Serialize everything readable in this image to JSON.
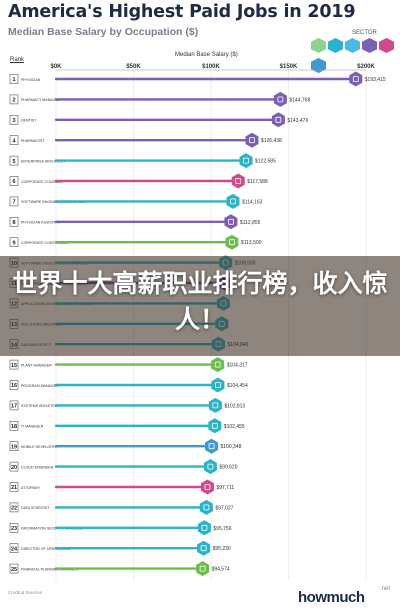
{
  "title": "America's Highest Paid Jobs in 2019",
  "subtitle": "Median Base Salary by Occupation ($)",
  "legend_title": "SECTOR",
  "sector_colors": [
    "#8fd18f",
    "#2bb3c8",
    "#4bb8e8",
    "#7a5fb5",
    "#d14a8b",
    "#3f9ad4"
  ],
  "banner_text": "世界十大高薪职业排行榜，收入惊人！",
  "footer_note": "Credit & Sources",
  "brand": {
    "name": "howmuch",
    "suffix": ".net"
  },
  "chart_data": {
    "type": "bar",
    "title": "America's Highest Paid Jobs in 2019",
    "subtitle": "Median Base Salary by Occupation ($)",
    "xlabel": "Median Base Salary ($)",
    "ylabel": "Rank",
    "xlim": [
      0,
      200000
    ],
    "x_ticks": [
      "$0K",
      "$50K",
      "$100K",
      "$150K",
      "$200K"
    ],
    "bars": [
      {
        "rank": 1,
        "label": "Physician",
        "value": 193415,
        "value_label": "$193,415",
        "color": "#7a5fb5"
      },
      {
        "rank": 2,
        "label": "Pharmacy Manager",
        "value": 144768,
        "value_label": "$144,768",
        "color": "#7a5fb5"
      },
      {
        "rank": 3,
        "label": "Dentist",
        "value": 143476,
        "value_label": "$143,476",
        "color": "#7a5fb5"
      },
      {
        "rank": 4,
        "label": "Pharmacist",
        "value": 126438,
        "value_label": "$126,438",
        "color": "#7a5fb5"
      },
      {
        "rank": 5,
        "label": "Enterprise Architect",
        "value": 122585,
        "value_label": "$122,585",
        "color": "#2bb3c8"
      },
      {
        "rank": 6,
        "label": "Corporate Counsel",
        "value": 117588,
        "value_label": "$117,588",
        "color": "#d14a8b"
      },
      {
        "rank": 7,
        "label": "Software Engineering Manager",
        "value": 114163,
        "value_label": "$114,163",
        "color": "#2bb3c8"
      },
      {
        "rank": 8,
        "label": "Physician Assistant",
        "value": 112855,
        "value_label": "$112,855",
        "color": "#7a5fb5"
      },
      {
        "rank": 9,
        "label": "Corporate Controller",
        "value": 113500,
        "value_label": "$113,500",
        "color": "#6abf4b"
      },
      {
        "rank": 10,
        "label": "Software Development Manager",
        "value": 109500,
        "value_label": "$109,500",
        "color": "#2bb3c8"
      },
      {
        "rank": 11,
        "label": "Nurse Practitioner",
        "value": 109000,
        "value_label": "",
        "color": "#7a5fb5"
      },
      {
        "rank": 12,
        "label": "Application Development Manager",
        "value": 108000,
        "value_label": "",
        "color": "#2bb3c8"
      },
      {
        "rank": 13,
        "label": "Solutions Architect",
        "value": 107000,
        "value_label": "",
        "color": "#2bb3c8"
      },
      {
        "rank": 14,
        "label": "Data Architect",
        "value": 104840,
        "value_label": "$104,840",
        "color": "#2bb3c8"
      },
      {
        "rank": 15,
        "label": "Plant Manager",
        "value": 104317,
        "value_label": "$104,317",
        "color": "#6abf4b"
      },
      {
        "rank": 16,
        "label": "Program Manager",
        "value": 104454,
        "value_label": "$104,454",
        "color": "#2bb3c8"
      },
      {
        "rank": 17,
        "label": "Systems Architect",
        "value": 102813,
        "value_label": "$102,813",
        "color": "#2bb3c8"
      },
      {
        "rank": 18,
        "label": "IT Manager",
        "value": 102455,
        "value_label": "$102,455",
        "color": "#2bb3c8"
      },
      {
        "rank": 19,
        "label": "Mobile Developer",
        "value": 100348,
        "value_label": "$100,348",
        "color": "#3f9ad4"
      },
      {
        "rank": 20,
        "label": "Cloud Engineer",
        "value": 99620,
        "value_label": "$99,620",
        "color": "#2bb3c8"
      },
      {
        "rank": 21,
        "label": "Attorney",
        "value": 97711,
        "value_label": "$97,711",
        "color": "#d14a8b"
      },
      {
        "rank": 22,
        "label": "Data Scientist",
        "value": 97027,
        "value_label": "$97,027",
        "color": "#2bb3c8"
      },
      {
        "rank": 23,
        "label": "Information Security Engineer",
        "value": 95756,
        "value_label": "$95,756",
        "color": "#2bb3c8"
      },
      {
        "rank": 24,
        "label": "Director of Operations",
        "value": 95230,
        "value_label": "$95,230",
        "color": "#2bb3c8"
      },
      {
        "rank": 25,
        "label": "Financial Planning Manager",
        "value": 94574,
        "value_label": "$94,574",
        "color": "#6abf4b"
      }
    ]
  }
}
